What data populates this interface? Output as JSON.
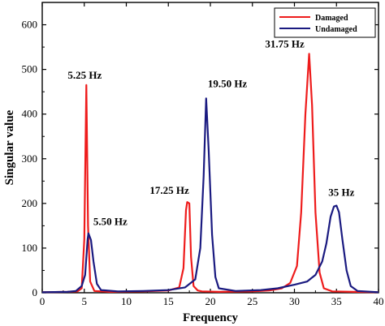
{
  "chart_data": {
    "type": "line",
    "xlabel": "Frequency",
    "ylabel": "Singular value",
    "xlim": [
      0,
      40
    ],
    "ylim": [
      0,
      650
    ],
    "x_ticks": [
      0,
      5,
      10,
      15,
      20,
      25,
      30,
      35,
      40
    ],
    "y_ticks": [
      0,
      100,
      200,
      300,
      400,
      500,
      600
    ],
    "legend_position": "top-right",
    "series": [
      {
        "name": "Damaged",
        "color": "#ee1c1c",
        "points": [
          [
            0,
            1
          ],
          [
            3,
            2
          ],
          [
            4.2,
            3
          ],
          [
            4.7,
            10
          ],
          [
            5,
            120
          ],
          [
            5.25,
            465
          ],
          [
            5.45,
            150
          ],
          [
            5.7,
            25
          ],
          [
            6.2,
            4
          ],
          [
            8,
            2
          ],
          [
            12,
            3
          ],
          [
            15,
            5
          ],
          [
            16.3,
            12
          ],
          [
            16.8,
            55
          ],
          [
            17.1,
            185
          ],
          [
            17.25,
            203
          ],
          [
            17.5,
            200
          ],
          [
            17.7,
            80
          ],
          [
            18,
            15
          ],
          [
            18.5,
            5
          ],
          [
            19,
            3
          ],
          [
            21,
            2
          ],
          [
            25,
            3
          ],
          [
            27,
            5
          ],
          [
            28.5,
            10
          ],
          [
            29.5,
            22
          ],
          [
            30.3,
            60
          ],
          [
            30.8,
            180
          ],
          [
            31.3,
            400
          ],
          [
            31.75,
            535
          ],
          [
            32.1,
            420
          ],
          [
            32.5,
            180
          ],
          [
            33,
            45
          ],
          [
            33.5,
            10
          ],
          [
            34.5,
            3
          ],
          [
            37,
            2
          ],
          [
            40,
            1
          ]
        ]
      },
      {
        "name": "Undamaged",
        "color": "#1a1a80",
        "points": [
          [
            0,
            1
          ],
          [
            3,
            2
          ],
          [
            4,
            4
          ],
          [
            4.7,
            15
          ],
          [
            5.1,
            40
          ],
          [
            5.4,
            120
          ],
          [
            5.5,
            133
          ],
          [
            5.8,
            118
          ],
          [
            6.1,
            70
          ],
          [
            6.5,
            20
          ],
          [
            7,
            6
          ],
          [
            9,
            3
          ],
          [
            12,
            4
          ],
          [
            15,
            6
          ],
          [
            17,
            12
          ],
          [
            18.2,
            30
          ],
          [
            18.8,
            100
          ],
          [
            19.2,
            260
          ],
          [
            19.5,
            435
          ],
          [
            19.8,
            320
          ],
          [
            20.2,
            130
          ],
          [
            20.6,
            35
          ],
          [
            21,
            10
          ],
          [
            23,
            4
          ],
          [
            26,
            6
          ],
          [
            28,
            10
          ],
          [
            30,
            18
          ],
          [
            31.5,
            25
          ],
          [
            32.5,
            40
          ],
          [
            33.3,
            70
          ],
          [
            33.8,
            110
          ],
          [
            34.3,
            170
          ],
          [
            34.7,
            193
          ],
          [
            35,
            195
          ],
          [
            35.3,
            180
          ],
          [
            35.7,
            120
          ],
          [
            36.2,
            50
          ],
          [
            36.7,
            15
          ],
          [
            37.5,
            4
          ],
          [
            40,
            1
          ]
        ]
      }
    ],
    "annotations": [
      {
        "text": "5.25 Hz",
        "x": 5.25,
        "y": 465
      },
      {
        "text": "5.50 Hz",
        "x": 5.5,
        "y": 133
      },
      {
        "text": "17.25 Hz",
        "x": 17.25,
        "y": 203
      },
      {
        "text": "19.50 Hz",
        "x": 19.5,
        "y": 435
      },
      {
        "text": "31.75 Hz",
        "x": 31.75,
        "y": 535
      },
      {
        "text": "35 Hz",
        "x": 35,
        "y": 195
      }
    ]
  }
}
